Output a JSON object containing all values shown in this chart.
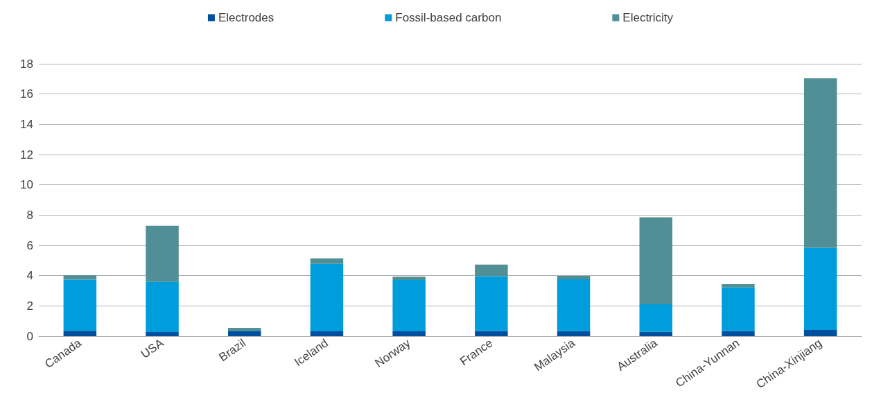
{
  "chart_data": {
    "type": "bar",
    "stacked": true,
    "categories": [
      "Canada",
      "USA",
      "Brazil",
      "Iceland",
      "Norway",
      "France",
      "Malaysia",
      "Australia",
      "China-Yunnan",
      "China-Xinjiang"
    ],
    "series": [
      {
        "name": "Electrodes",
        "color": "#004f9f",
        "values": [
          0.35,
          0.27,
          0.32,
          0.32,
          0.32,
          0.34,
          0.33,
          0.29,
          0.34,
          0.41
        ]
      },
      {
        "name": "Fossil-based carbon",
        "color": "#009ddc",
        "values": [
          3.38,
          3.31,
          0,
          4.45,
          3.39,
          3.62,
          3.43,
          1.82,
          2.88,
          5.43
        ]
      },
      {
        "name": "Electricity",
        "color": "#518f97",
        "values": [
          0.29,
          3.71,
          0.23,
          0.37,
          0.22,
          0.77,
          0.23,
          5.74,
          0.22,
          11.2
        ]
      }
    ],
    "ylim": [
      0,
      18
    ],
    "yticks": [
      0,
      2,
      4,
      6,
      8,
      10,
      12,
      14,
      16,
      18
    ],
    "grid": "y",
    "legend": "top"
  }
}
